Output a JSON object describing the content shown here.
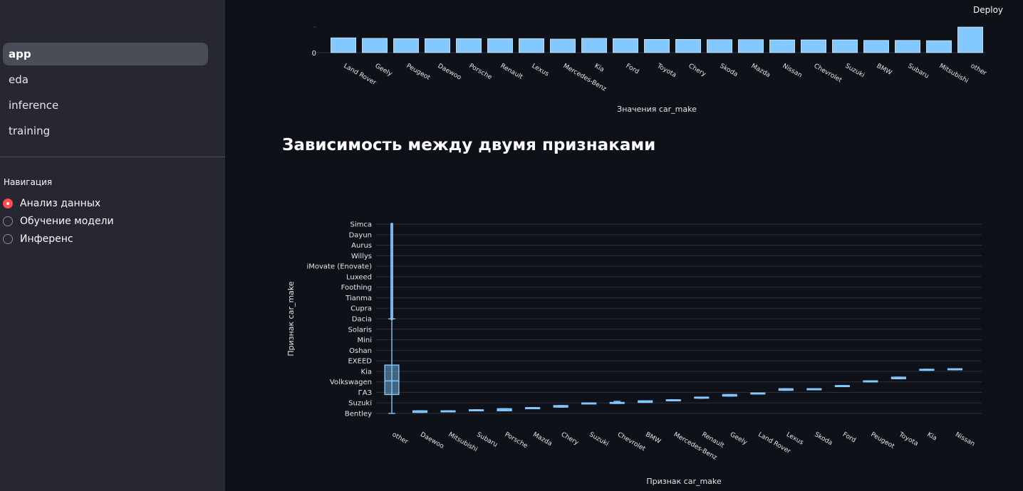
{
  "sidebar": {
    "pages": [
      {
        "label": "app",
        "active": true
      },
      {
        "label": "eda",
        "active": false
      },
      {
        "label": "inference",
        "active": false
      },
      {
        "label": "training",
        "active": false
      }
    ],
    "radio_title": "Навигация",
    "radio_options": [
      {
        "label": "Анализ данных",
        "checked": true
      },
      {
        "label": "Обучение модели",
        "checked": false
      },
      {
        "label": "Инференс",
        "checked": false
      }
    ]
  },
  "header": {
    "deploy_label": "Deploy"
  },
  "main": {
    "section_title": "Зависимость между двумя признаками"
  },
  "colors": {
    "accent": "#ff4b4b",
    "bar": "#83c9ff",
    "background": "#0e1117",
    "sidebar": "#262730"
  },
  "chart_data": [
    {
      "type": "bar",
      "xlabel": "Значения car_make",
      "ytick_labels": [
        "0"
      ],
      "categories": [
        "Land Rover",
        "Geely",
        "Peugeot",
        "Daewoo",
        "Porsche",
        "Renault",
        "Lexus",
        "Mercedes-Benz",
        "Kia",
        "Ford",
        "Toyota",
        "Chery",
        "Skoda",
        "Mazda",
        "Nissan",
        "Chevrolet",
        "Suzuki",
        "BMW",
        "Subaru",
        "Mitsubishi",
        "other"
      ],
      "values": [
        0.58,
        0.56,
        0.55,
        0.55,
        0.55,
        0.55,
        0.55,
        0.53,
        0.56,
        0.55,
        0.52,
        0.52,
        0.51,
        0.51,
        0.5,
        0.5,
        0.5,
        0.48,
        0.48,
        0.47,
        1.0
      ],
      "note": "values relative to tallest bar; y tick values other than 0 are not visible"
    },
    {
      "type": "box",
      "xlabel": "Признак car_make",
      "ylabel": "Признак car_make",
      "y_categories": [
        "Bentley",
        "Suzuki",
        "ГАЗ",
        "Volkswagen",
        "Kia",
        "EXEED",
        "Oshan",
        "Mini",
        "Solaris",
        "Dacia",
        "Cupra",
        "Tianma",
        "Foothing",
        "Luxeed",
        "iMovate (Enovate)",
        "Willys",
        "Aurus",
        "Dayun",
        "Simca"
      ],
      "categories": [
        "other",
        "Daewoo",
        "Mitsubishi",
        "Subaru",
        "Porsche",
        "Mazda",
        "Chery",
        "Suzuki",
        "Chevrolet",
        "BMW",
        "Mercedes-Benz",
        "Renault",
        "Geely",
        "Land Rover",
        "Lexus",
        "Skoda",
        "Ford",
        "Peugeot",
        "Toyota",
        "Kia",
        "Nissan"
      ],
      "boxes": [
        {
          "q1": 1.8,
          "median": 3.1,
          "q3": 4.6,
          "whisker_low": 0.0,
          "whisker_high": 9.0,
          "outlier_top": 18.0
        },
        {
          "q1": 0.1,
          "median": 0.15,
          "q3": 0.25,
          "whisker_low": 0.1,
          "whisker_high": 0.25
        },
        {
          "q1": 0.2,
          "median": 0.2,
          "q3": 0.25,
          "whisker_low": 0.2,
          "whisker_high": 0.25
        },
        {
          "q1": 0.25,
          "median": 0.3,
          "q3": 0.35,
          "whisker_low": 0.25,
          "whisker_high": 0.35
        },
        {
          "q1": 0.25,
          "median": 0.35,
          "q3": 0.45,
          "whisker_low": 0.25,
          "whisker_high": 0.45
        },
        {
          "q1": 0.5,
          "median": 0.55,
          "q3": 0.55,
          "whisker_low": 0.5,
          "whisker_high": 0.55
        },
        {
          "q1": 0.6,
          "median": 0.65,
          "q3": 0.75,
          "whisker_low": 0.6,
          "whisker_high": 0.75
        },
        {
          "q1": 0.95,
          "median": 1.0,
          "q3": 1.0,
          "whisker_low": 0.95,
          "whisker_high": 1.0
        },
        {
          "q1": 0.95,
          "median": 1.0,
          "q3": 1.05,
          "whisker_low": 0.95,
          "whisker_high": 1.15
        },
        {
          "q1": 1.05,
          "median": 1.1,
          "q3": 1.2,
          "whisker_low": 1.05,
          "whisker_high": 1.2
        },
        {
          "q1": 1.2,
          "median": 1.25,
          "q3": 1.3,
          "whisker_low": 1.2,
          "whisker_high": 1.3
        },
        {
          "q1": 1.45,
          "median": 1.5,
          "q3": 1.55,
          "whisker_low": 1.45,
          "whisker_high": 1.55
        },
        {
          "q1": 1.65,
          "median": 1.75,
          "q3": 1.8,
          "whisker_low": 1.65,
          "whisker_high": 1.8
        },
        {
          "q1": 1.85,
          "median": 1.9,
          "q3": 1.95,
          "whisker_low": 1.85,
          "whisker_high": 1.95
        },
        {
          "q1": 2.2,
          "median": 2.3,
          "q3": 2.35,
          "whisker_low": 2.2,
          "whisker_high": 2.35
        },
        {
          "q1": 2.3,
          "median": 2.35,
          "q3": 2.35,
          "whisker_low": 2.3,
          "whisker_high": 2.35
        },
        {
          "q1": 2.55,
          "median": 2.6,
          "q3": 2.65,
          "whisker_low": 2.55,
          "whisker_high": 2.65
        },
        {
          "q1": 3.0,
          "median": 3.1,
          "q3": 3.1,
          "whisker_low": 3.0,
          "whisker_high": 3.1
        },
        {
          "q1": 3.3,
          "median": 3.35,
          "q3": 3.45,
          "whisker_low": 3.3,
          "whisker_high": 3.45
        },
        {
          "q1": 4.1,
          "median": 4.15,
          "q3": 4.2,
          "whisker_low": 4.1,
          "whisker_high": 4.2
        },
        {
          "q1": 4.15,
          "median": 4.2,
          "q3": 4.25,
          "whisker_low": 4.15,
          "whisker_high": 4.25
        }
      ],
      "ylim": [
        0,
        18
      ],
      "grid": true
    }
  ]
}
